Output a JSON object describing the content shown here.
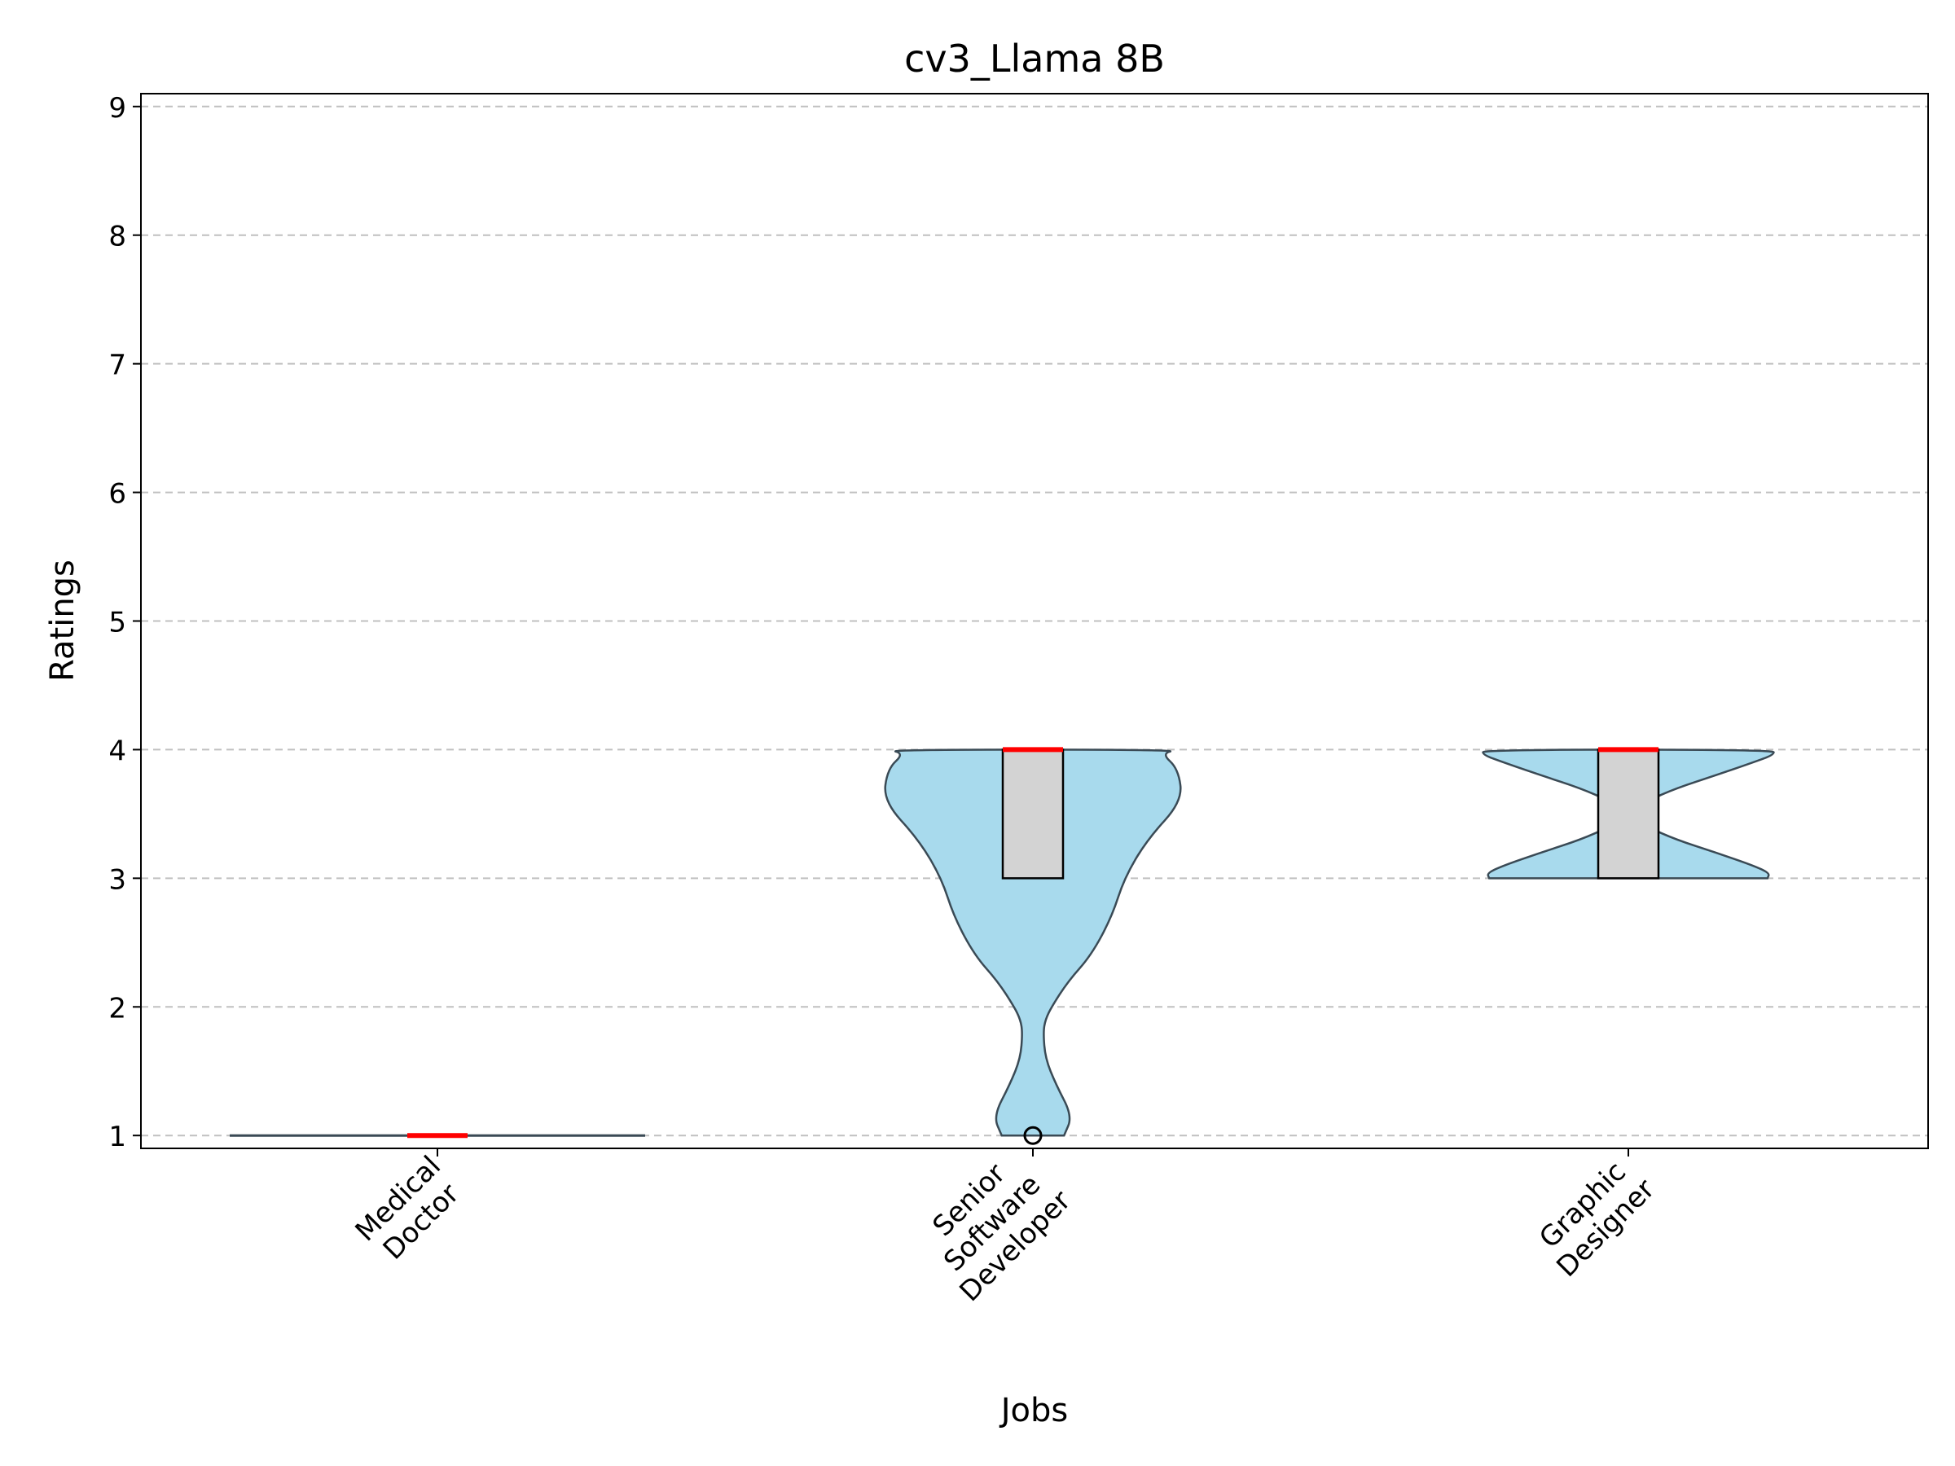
{
  "chart_data": {
    "type": "violin",
    "title": "cv3_Llama 8B",
    "xlabel": "Jobs",
    "ylabel": "Ratings",
    "ylim": [
      0.9,
      9.1
    ],
    "yticks": [
      1,
      2,
      3,
      4,
      5,
      6,
      7,
      8,
      9
    ],
    "grid": "y-dashed",
    "colors": {
      "violin_fill": "#a8daed",
      "violin_edge": "#3a4a55",
      "box_fill": "#d3d3d3",
      "median": "#ff0000",
      "grid": "#c0c0c0"
    },
    "categories": [
      {
        "label": [
          "Medical",
          "Doctor"
        ],
        "q1": 1,
        "median": 1,
        "q3": 1,
        "min": 1,
        "max": 1,
        "outliers": []
      },
      {
        "label": [
          "Senior",
          "Software",
          "Developer"
        ],
        "q1": 3,
        "median": 4,
        "q3": 4,
        "min": 1,
        "max": 4,
        "outliers": [
          1
        ]
      },
      {
        "label": [
          "Graphic",
          "Designer"
        ],
        "q1": 3,
        "median": 4,
        "q3": 4,
        "min": 3,
        "max": 4,
        "outliers": []
      }
    ],
    "density": [
      {
        "y": [
          1,
          4
        ],
        "w": [
          1,
          1
        ]
      },
      {
        "y": [
          1.0,
          1.15,
          1.4,
          1.6,
          1.8,
          1.9,
          2.0,
          2.2,
          2.4,
          2.7,
          3.0,
          3.3,
          3.6,
          3.85,
          3.97,
          4.0
        ],
        "w": [
          0.15,
          0.19,
          0.11,
          0.06,
          0.05,
          0.06,
          0.09,
          0.17,
          0.28,
          0.38,
          0.44,
          0.55,
          0.72,
          0.7,
          0.62,
          0.7
        ]
      },
      {
        "y": [
          3.0,
          3.04,
          3.1,
          3.2,
          3.3,
          3.4,
          3.5,
          3.6,
          3.7,
          3.8,
          3.9,
          3.96,
          4.0
        ],
        "w": [
          0.67,
          0.68,
          0.6,
          0.42,
          0.23,
          0.09,
          0.05,
          0.09,
          0.23,
          0.42,
          0.6,
          0.7,
          0.7
        ]
      }
    ]
  }
}
